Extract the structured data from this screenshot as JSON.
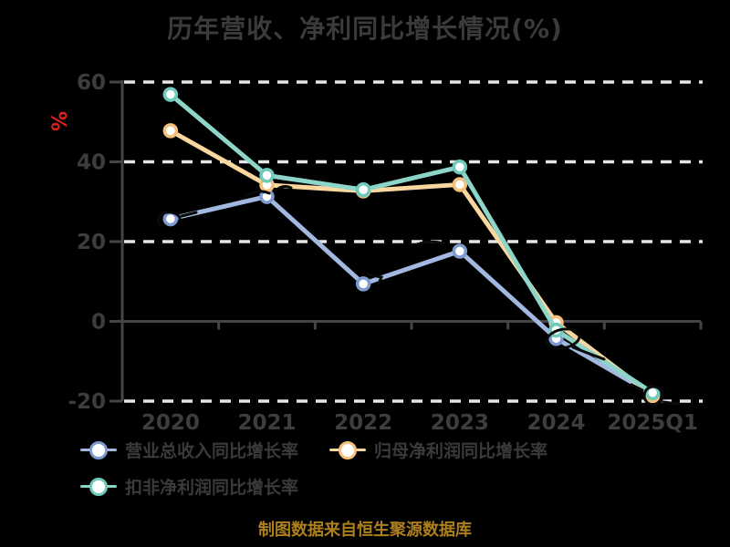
{
  "title": "历年营收、净利同比增长情况(%)",
  "y_axis_unit": "%",
  "footer": "制图数据来自恒生聚源数据库",
  "colors": {
    "background": "#000000",
    "text": "#3b3b3b",
    "axis": "#454545",
    "gridline": "#e6e6e6",
    "unit_label": "#e01f1f",
    "footer_text": "#ad7f1d"
  },
  "chart_data": {
    "type": "line",
    "title": "历年营收、净利同比增长情况(%)",
    "ylabel": "%",
    "categories": [
      "2020",
      "2021",
      "2022",
      "2023",
      "2024",
      "2025Q1"
    ],
    "series": [
      {
        "name": "营业总收入同比增长率",
        "color": "#a3b8e0",
        "ring": "#7e9bd0",
        "values": [
          25.7,
          31.3,
          9.4,
          17.6,
          -4.3,
          -18.3
        ]
      },
      {
        "name": "归母净利润同比增长率",
        "color": "#fbd7a0",
        "ring": "#f5c07d",
        "values": [
          47.8,
          34.2,
          32.7,
          34.3,
          -0.3,
          -18.6
        ]
      },
      {
        "name": "扣非净利润同比增长率",
        "color": "#8ed5c9",
        "ring": "#6fcabb",
        "values": [
          56.9,
          36.6,
          33.0,
          38.7,
          -2.2,
          -17.9
        ]
      }
    ],
    "y_ticks": [
      60,
      40,
      20,
      0,
      -20
    ],
    "ylim": [
      -20,
      60
    ],
    "grid": true,
    "gridline_style": "dashed",
    "legend_position": "bottom"
  }
}
